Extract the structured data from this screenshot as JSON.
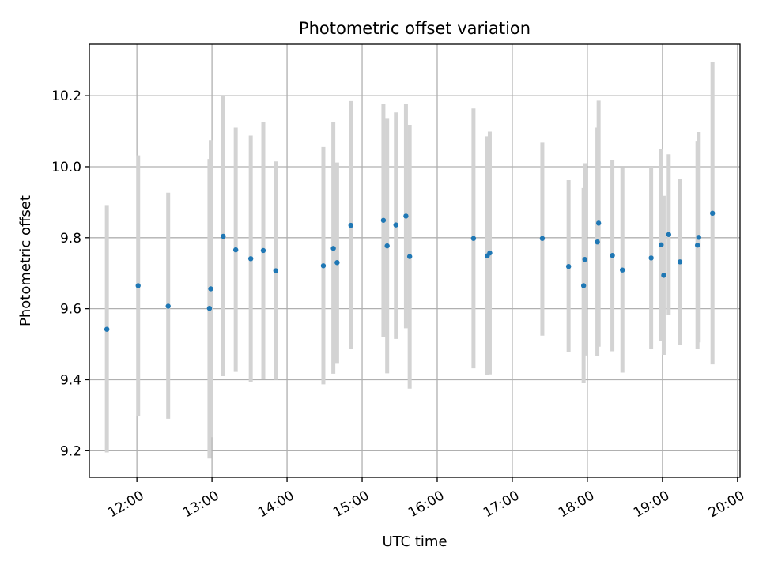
{
  "chart_data": {
    "type": "scatter",
    "title": "Photometric offset variation",
    "xlabel": "UTC time",
    "ylabel": "Photometric offset",
    "x_ticks": [
      "12:00",
      "13:00",
      "14:00",
      "15:00",
      "16:00",
      "17:00",
      "18:00",
      "19:00",
      "20:00"
    ],
    "y_ticks": [
      "9.2",
      "9.4",
      "9.6",
      "9.8",
      "10.0",
      "10.2"
    ],
    "xlim": [
      "11:22",
      "20:02"
    ],
    "ylim": [
      9.125,
      10.345
    ],
    "grid": true,
    "marker_color": "#1f77b4",
    "errorbar_color": "#d3d3d3",
    "points": [
      {
        "t": "11:36",
        "y": 9.542,
        "lo": 9.195,
        "hi": 9.89
      },
      {
        "t": "12:01",
        "y": 9.665,
        "lo": 9.298,
        "hi": 10.032
      },
      {
        "t": "12:25",
        "y": 9.607,
        "lo": 9.29,
        "hi": 9.927
      },
      {
        "t": "12:58",
        "y": 9.601,
        "lo": 9.178,
        "hi": 10.022
      },
      {
        "t": "12:59",
        "y": 9.656,
        "lo": 9.238,
        "hi": 10.075
      },
      {
        "t": "13:09",
        "y": 9.804,
        "lo": 9.41,
        "hi": 10.198
      },
      {
        "t": "13:19",
        "y": 9.766,
        "lo": 9.422,
        "hi": 10.11
      },
      {
        "t": "13:31",
        "y": 9.741,
        "lo": 9.393,
        "hi": 10.088
      },
      {
        "t": "13:41",
        "y": 9.764,
        "lo": 9.402,
        "hi": 10.126
      },
      {
        "t": "13:51",
        "y": 9.707,
        "lo": 9.4,
        "hi": 10.015
      },
      {
        "t": "14:29",
        "y": 9.721,
        "lo": 9.387,
        "hi": 10.056
      },
      {
        "t": "14:37",
        "y": 9.77,
        "lo": 9.417,
        "hi": 10.126
      },
      {
        "t": "14:40",
        "y": 9.73,
        "lo": 9.447,
        "hi": 10.012
      },
      {
        "t": "14:51",
        "y": 9.835,
        "lo": 9.486,
        "hi": 10.185
      },
      {
        "t": "15:17",
        "y": 9.849,
        "lo": 9.52,
        "hi": 10.177
      },
      {
        "t": "15:20",
        "y": 9.777,
        "lo": 9.418,
        "hi": 10.137
      },
      {
        "t": "15:27",
        "y": 9.836,
        "lo": 9.515,
        "hi": 10.153
      },
      {
        "t": "15:35",
        "y": 9.861,
        "lo": 9.545,
        "hi": 10.177
      },
      {
        "t": "15:38",
        "y": 9.747,
        "lo": 9.375,
        "hi": 10.118
      },
      {
        "t": "16:29",
        "y": 9.798,
        "lo": 9.432,
        "hi": 10.164
      },
      {
        "t": "16:40",
        "y": 9.749,
        "lo": 9.414,
        "hi": 10.086
      },
      {
        "t": "16:42",
        "y": 9.757,
        "lo": 9.415,
        "hi": 10.099
      },
      {
        "t": "17:24",
        "y": 9.798,
        "lo": 9.524,
        "hi": 10.068
      },
      {
        "t": "17:45",
        "y": 9.719,
        "lo": 9.477,
        "hi": 9.962
      },
      {
        "t": "17:57",
        "y": 9.665,
        "lo": 9.39,
        "hi": 9.94
      },
      {
        "t": "17:58",
        "y": 9.739,
        "lo": 9.468,
        "hi": 10.01
      },
      {
        "t": "18:08",
        "y": 9.788,
        "lo": 9.466,
        "hi": 10.11
      },
      {
        "t": "18:09",
        "y": 9.841,
        "lo": 9.493,
        "hi": 10.186
      },
      {
        "t": "18:20",
        "y": 9.75,
        "lo": 9.48,
        "hi": 10.018
      },
      {
        "t": "18:28",
        "y": 9.709,
        "lo": 9.42,
        "hi": 9.998
      },
      {
        "t": "18:51",
        "y": 9.743,
        "lo": 9.487,
        "hi": 10.0
      },
      {
        "t": "18:59",
        "y": 9.78,
        "lo": 9.51,
        "hi": 10.05
      },
      {
        "t": "19:01",
        "y": 9.694,
        "lo": 9.47,
        "hi": 9.918
      },
      {
        "t": "19:05",
        "y": 9.809,
        "lo": 9.583,
        "hi": 10.035
      },
      {
        "t": "19:14",
        "y": 9.732,
        "lo": 9.497,
        "hi": 9.966
      },
      {
        "t": "19:28",
        "y": 9.779,
        "lo": 9.487,
        "hi": 10.071
      },
      {
        "t": "19:29",
        "y": 9.801,
        "lo": 9.505,
        "hi": 10.098
      },
      {
        "t": "19:40",
        "y": 9.869,
        "lo": 9.443,
        "hi": 10.294
      }
    ]
  }
}
